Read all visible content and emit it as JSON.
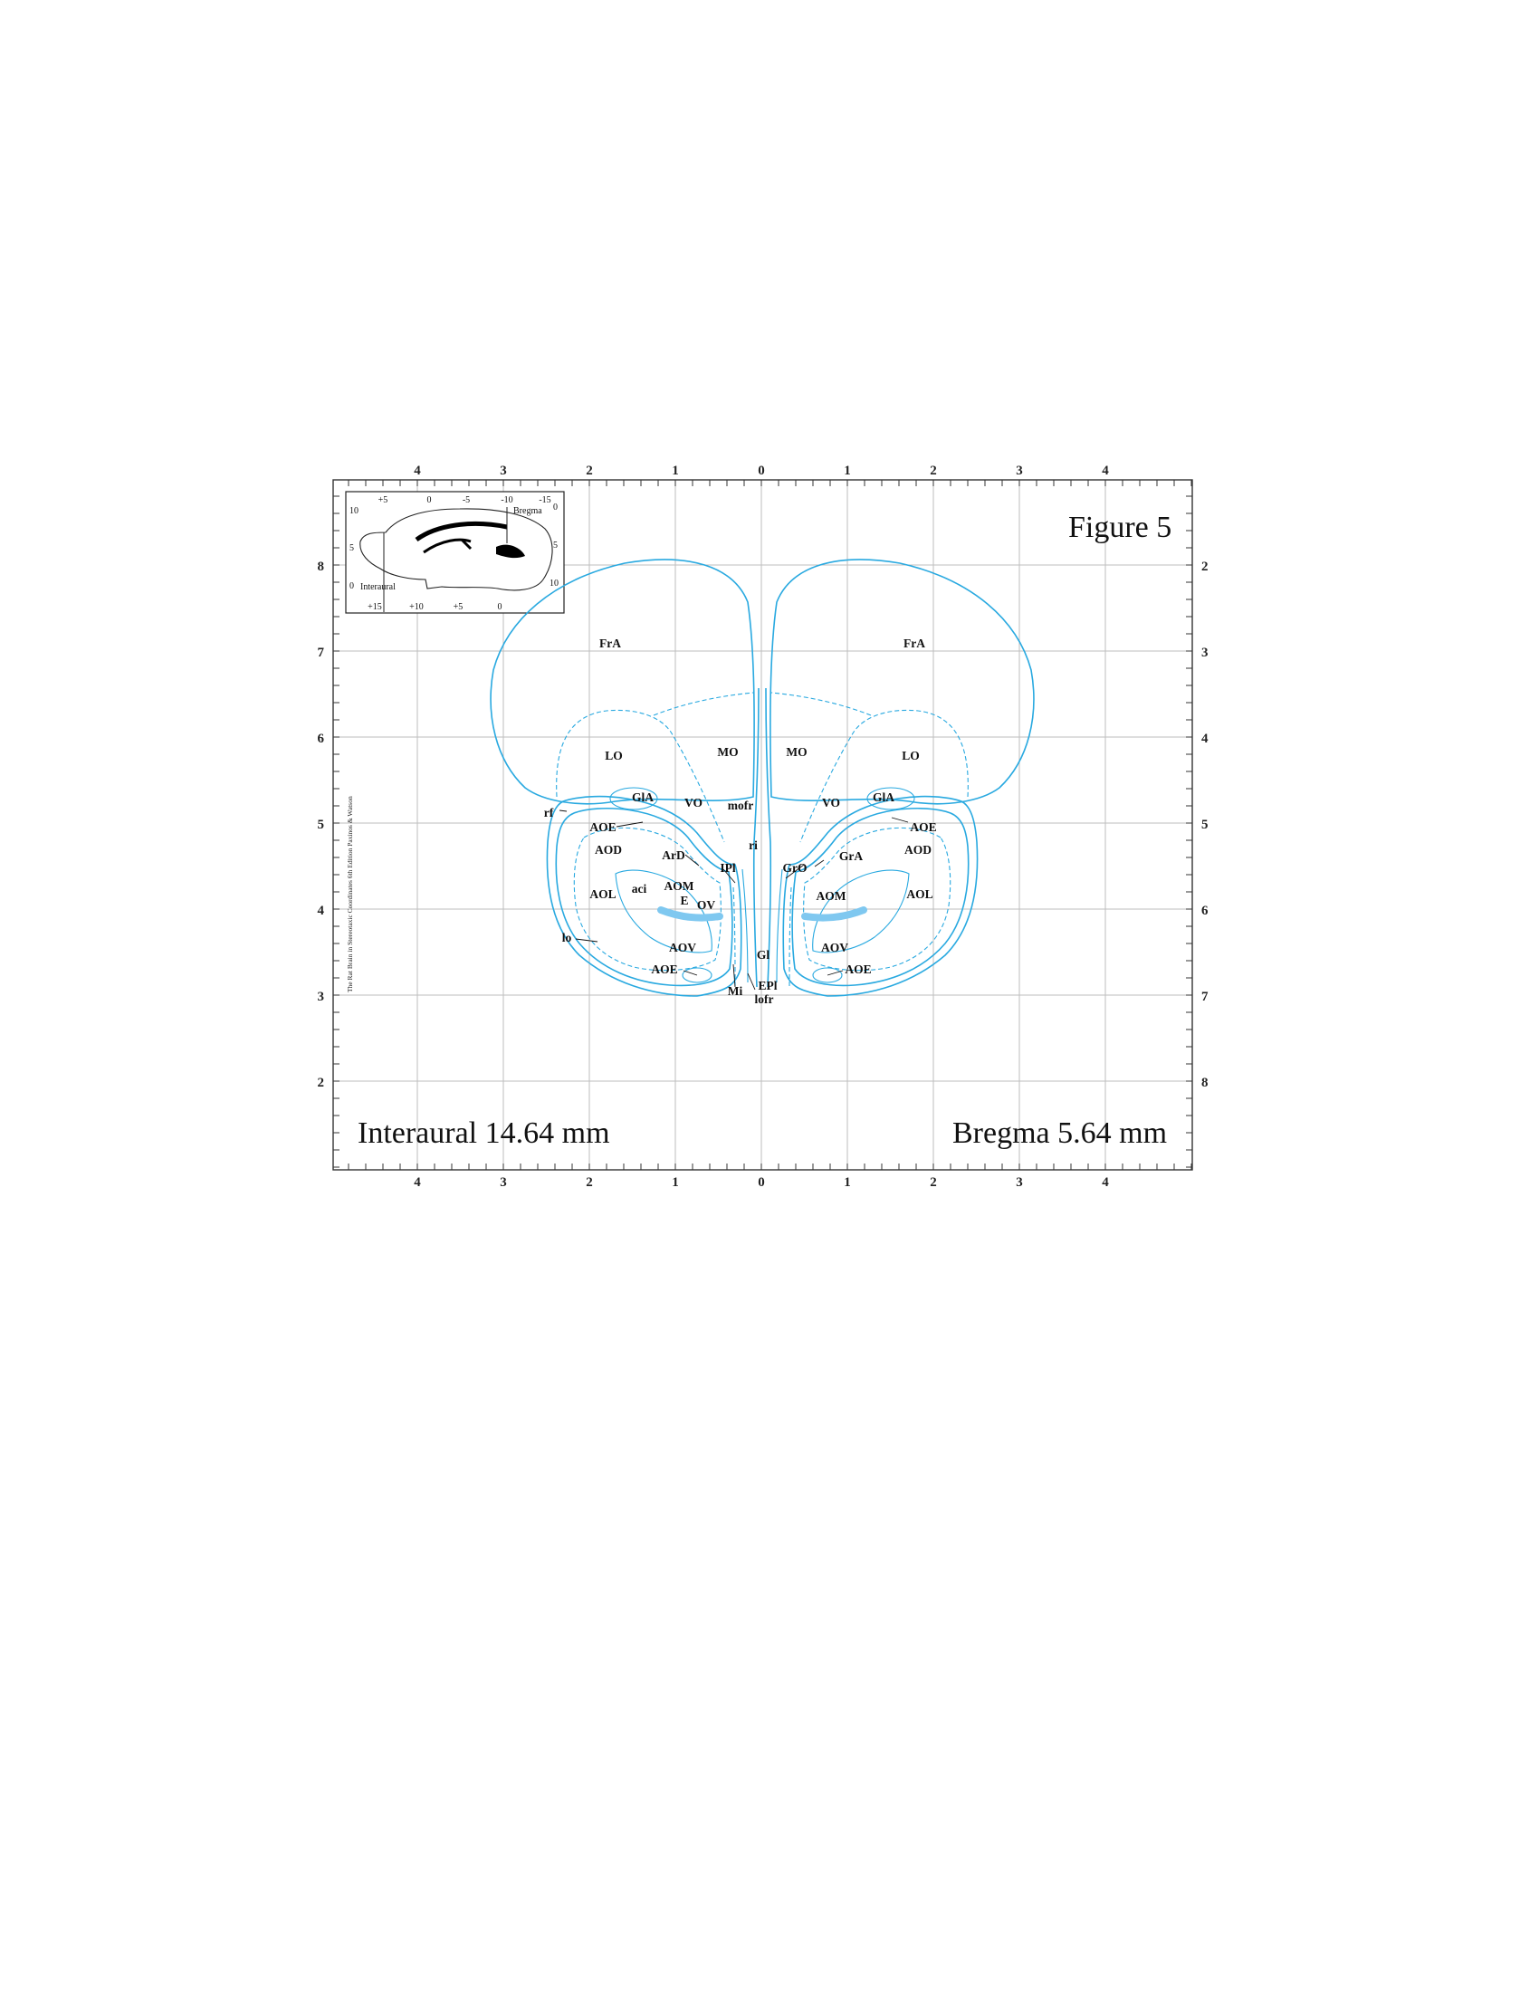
{
  "figure": {
    "title": "Figure 5",
    "interaural_label": "Interaural 14.64 mm",
    "bregma_label": "Bregma 5.64 mm",
    "side_credit": "The Rat Brain in Stereotaxic Coordinates  6th Edition  Paxinos & Watson"
  },
  "axes": {
    "top_ticks": [
      "4",
      "3",
      "2",
      "1",
      "0",
      "1",
      "2",
      "3",
      "4"
    ],
    "bottom_ticks": [
      "4",
      "3",
      "2",
      "1",
      "0",
      "1",
      "2",
      "3",
      "4"
    ],
    "left_ticks": [
      "8",
      "7",
      "6",
      "5",
      "4",
      "3",
      "2"
    ],
    "right_ticks": [
      "2",
      "3",
      "4",
      "5",
      "6",
      "7",
      "8"
    ]
  },
  "inset": {
    "top_ticks": [
      "+5",
      "0",
      "-5",
      "-10",
      "-15"
    ],
    "bottom_ticks": [
      "+15",
      "+10",
      "+5",
      "0"
    ],
    "left_ticks": [
      "10",
      "5",
      "0"
    ],
    "right_ticks": [
      "0",
      "5",
      "10"
    ],
    "bregma_label": "Bregma",
    "interaural_label": "Interaural"
  },
  "structures": {
    "fra_l": "FrA",
    "fra_r": "FrA",
    "lo_l": "LO",
    "lo_r": "LO",
    "mo_l": "MO",
    "mo_r": "MO",
    "vo_l": "VO",
    "vo_r": "VO",
    "gia_l": "GlA",
    "gia_r": "GlA",
    "mofr": "mofr",
    "rf": "rf",
    "ri": "ri",
    "aoe_l1": "AOE",
    "aoe_r1": "AOE",
    "aod_l": "AOD",
    "aod_r": "AOD",
    "ard": "ArD",
    "ipl": "IPl",
    "gro": "GrO",
    "gra": "GrA",
    "aol_l": "AOL",
    "aol_r": "AOL",
    "aci": "aci",
    "aom_l": "AOM",
    "aom_r": "AOM",
    "e": "E",
    "ov": "OV",
    "lo": "lo",
    "aov_l": "AOV",
    "aov_r": "AOV",
    "aoe_l2": "AOE",
    "aoe_r2": "AOE",
    "gl": "Gl",
    "mi": "Mi",
    "epl": "EPl",
    "lofr": "lofr"
  }
}
